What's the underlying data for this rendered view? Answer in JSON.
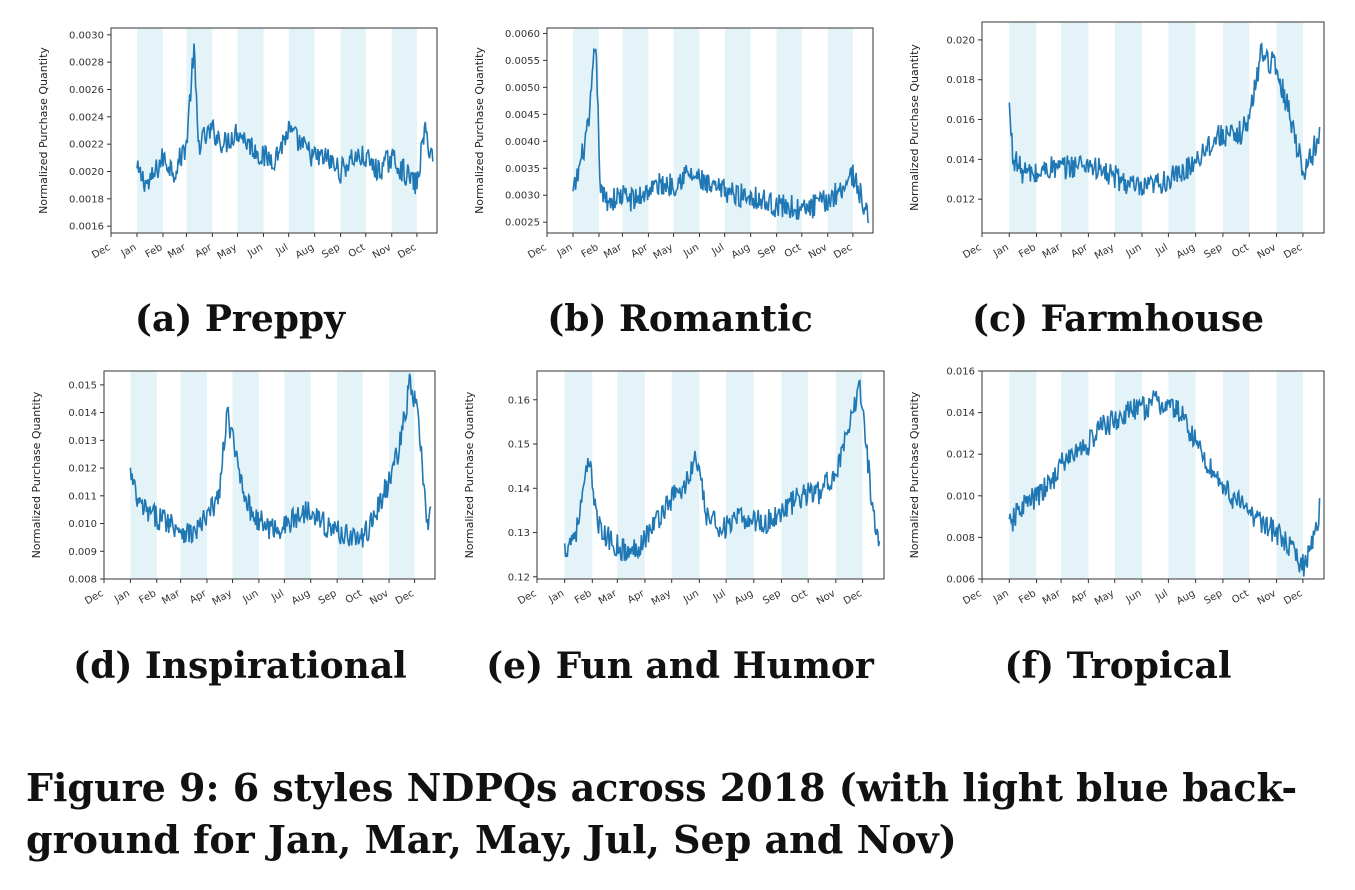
{
  "figure_caption": "Figure 9: 6 styles NDPQs across 2018 (with light blue back-ground for Jan, Mar, May, Jul, Sep and Nov)",
  "shade_color": "#e3f3f8",
  "line_color": "#1f77b4",
  "months": [
    "Dec",
    "Jan",
    "Feb",
    "Mar",
    "Apr",
    "May",
    "Jun",
    "Jul",
    "Aug",
    "Sep",
    "Oct",
    "Nov",
    "Dec"
  ],
  "shaded_months": [
    "Jan",
    "Mar",
    "May",
    "Jul",
    "Sep",
    "Nov"
  ],
  "chart_data": [
    {
      "type": "line",
      "caption": "(a) Preppy",
      "ylabel": "Normalized Purchase Quantity",
      "yticks": [
        "0.0016",
        "0.0018",
        "0.0020",
        "0.0022",
        "0.0024",
        "0.0026",
        "0.0028",
        "0.0030"
      ],
      "ylim": [
        0.00155,
        0.00305
      ],
      "x": [
        "2018-01-01",
        "2018-01-15",
        "2018-02-01",
        "2018-02-15",
        "2018-03-01",
        "2018-03-10",
        "2018-03-15",
        "2018-04-01",
        "2018-04-15",
        "2018-05-01",
        "2018-05-15",
        "2018-06-01",
        "2018-06-15",
        "2018-07-01",
        "2018-07-15",
        "2018-08-01",
        "2018-08-15",
        "2018-09-01",
        "2018-09-15",
        "2018-10-01",
        "2018-10-15",
        "2018-11-01",
        "2018-11-15",
        "2018-12-01",
        "2018-12-10",
        "2018-12-20"
      ],
      "y": [
        0.002,
        0.0019,
        0.0021,
        0.002,
        0.0022,
        0.0029,
        0.0022,
        0.0023,
        0.0022,
        0.0023,
        0.0022,
        0.0021,
        0.0021,
        0.0023,
        0.0022,
        0.0021,
        0.0021,
        0.002,
        0.0021,
        0.0021,
        0.002,
        0.0021,
        0.002,
        0.0019,
        0.0023,
        0.0021
      ]
    },
    {
      "type": "line",
      "caption": "(b) Romantic",
      "ylabel": "Normalized Purchase Quantity",
      "yticks": [
        "0.0025",
        "0.0030",
        "0.0035",
        "0.0040",
        "0.0045",
        "0.0050",
        "0.0055",
        "0.0060"
      ],
      "ylim": [
        0.0023,
        0.0061
      ],
      "x": [
        "2018-01-01",
        "2018-01-10",
        "2018-01-20",
        "2018-01-28",
        "2018-02-03",
        "2018-02-15",
        "2018-03-01",
        "2018-03-15",
        "2018-04-01",
        "2018-04-15",
        "2018-05-01",
        "2018-05-15",
        "2018-06-01",
        "2018-06-15",
        "2018-07-01",
        "2018-07-15",
        "2018-08-01",
        "2018-08-15",
        "2018-09-01",
        "2018-09-15",
        "2018-10-01",
        "2018-10-15",
        "2018-11-01",
        "2018-11-15",
        "2018-12-01",
        "2018-12-10",
        "2018-12-20"
      ],
      "y": [
        0.003,
        0.0036,
        0.0043,
        0.0059,
        0.003,
        0.0029,
        0.003,
        0.0029,
        0.0031,
        0.0032,
        0.0032,
        0.0034,
        0.0033,
        0.0031,
        0.0031,
        0.003,
        0.003,
        0.0029,
        0.0028,
        0.0028,
        0.0027,
        0.0028,
        0.0029,
        0.0031,
        0.0034,
        0.003,
        0.0025
      ]
    },
    {
      "type": "line",
      "caption": "(c) Farmhouse",
      "ylabel": "Normalized Purchase Quantity",
      "yticks": [
        "0.012",
        "0.014",
        "0.016",
        "0.018",
        "0.020"
      ],
      "ylim": [
        0.0103,
        0.0209
      ],
      "x": [
        "2018-01-01",
        "2018-01-05",
        "2018-01-15",
        "2018-02-01",
        "2018-02-15",
        "2018-03-01",
        "2018-03-15",
        "2018-04-01",
        "2018-04-15",
        "2018-05-01",
        "2018-05-15",
        "2018-06-01",
        "2018-06-15",
        "2018-07-01",
        "2018-07-15",
        "2018-08-01",
        "2018-08-15",
        "2018-09-01",
        "2018-09-15",
        "2018-10-01",
        "2018-10-15",
        "2018-11-01",
        "2018-11-15",
        "2018-12-01",
        "2018-12-10",
        "2018-12-20"
      ],
      "y": [
        0.0166,
        0.0142,
        0.0134,
        0.0132,
        0.0136,
        0.0135,
        0.0137,
        0.0138,
        0.0134,
        0.0131,
        0.0128,
        0.0124,
        0.0127,
        0.013,
        0.0132,
        0.014,
        0.0147,
        0.0153,
        0.015,
        0.016,
        0.0195,
        0.0185,
        0.0165,
        0.0135,
        0.014,
        0.0155
      ]
    },
    {
      "type": "line",
      "caption": "(d) Inspirational",
      "ylabel": "Normalized Purchase Quantity",
      "yticks": [
        "0.008",
        "0.009",
        "0.010",
        "0.011",
        "0.012",
        "0.013",
        "0.014",
        "0.015"
      ],
      "ylim": [
        0.008,
        0.0155
      ],
      "x": [
        "2018-01-01",
        "2018-01-10",
        "2018-01-25",
        "2018-02-15",
        "2018-03-01",
        "2018-03-15",
        "2018-04-01",
        "2018-04-15",
        "2018-04-25",
        "2018-05-05",
        "2018-05-20",
        "2018-06-01",
        "2018-06-15",
        "2018-07-01",
        "2018-07-15",
        "2018-08-01",
        "2018-08-15",
        "2018-09-01",
        "2018-09-15",
        "2018-10-01",
        "2018-10-15",
        "2018-11-01",
        "2018-11-15",
        "2018-11-25",
        "2018-12-05",
        "2018-12-15",
        "2018-12-20"
      ],
      "y": [
        0.0118,
        0.0107,
        0.0103,
        0.0101,
        0.0098,
        0.0096,
        0.0102,
        0.011,
        0.014,
        0.0124,
        0.0106,
        0.0101,
        0.0098,
        0.0099,
        0.0102,
        0.0106,
        0.01,
        0.0097,
        0.0096,
        0.0094,
        0.0103,
        0.0115,
        0.013,
        0.015,
        0.014,
        0.01,
        0.0104
      ]
    },
    {
      "type": "line",
      "caption": "(e) Fun and Humor",
      "ylabel": "Normalized Purchase Quantity",
      "yticks": [
        "0.12",
        "0.13",
        "0.14",
        "0.15",
        "0.16"
      ],
      "ylim": [
        0.1195,
        0.1665
      ],
      "x": [
        "2018-01-01",
        "2018-01-15",
        "2018-01-28",
        "2018-02-10",
        "2018-03-01",
        "2018-03-15",
        "2018-04-01",
        "2018-04-15",
        "2018-05-01",
        "2018-05-15",
        "2018-05-28",
        "2018-06-10",
        "2018-07-01",
        "2018-07-15",
        "2018-08-01",
        "2018-08-15",
        "2018-09-01",
        "2018-09-15",
        "2018-10-01",
        "2018-10-15",
        "2018-11-01",
        "2018-11-15",
        "2018-11-28",
        "2018-12-10",
        "2018-12-20"
      ],
      "y": [
        0.126,
        0.131,
        0.146,
        0.13,
        0.127,
        0.125,
        0.129,
        0.133,
        0.138,
        0.14,
        0.147,
        0.133,
        0.131,
        0.133,
        0.133,
        0.132,
        0.135,
        0.137,
        0.139,
        0.139,
        0.144,
        0.152,
        0.164,
        0.14,
        0.126
      ]
    },
    {
      "type": "line",
      "caption": "(f) Tropical",
      "ylabel": "Normalized Purchase Quantity",
      "yticks": [
        "0.006",
        "0.008",
        "0.010",
        "0.012",
        "0.014",
        "0.016"
      ],
      "ylim": [
        0.006,
        0.016
      ],
      "x": [
        "2018-01-01",
        "2018-01-15",
        "2018-02-01",
        "2018-02-15",
        "2018-03-01",
        "2018-03-15",
        "2018-04-01",
        "2018-04-15",
        "2018-05-01",
        "2018-05-15",
        "2018-06-01",
        "2018-06-15",
        "2018-07-01",
        "2018-07-15",
        "2018-08-01",
        "2018-08-15",
        "2018-09-01",
        "2018-09-15",
        "2018-10-01",
        "2018-10-15",
        "2018-11-01",
        "2018-11-15",
        "2018-12-01",
        "2018-12-10",
        "2018-12-20"
      ],
      "y": [
        0.0085,
        0.0095,
        0.0099,
        0.0105,
        0.0115,
        0.012,
        0.0125,
        0.0133,
        0.0136,
        0.014,
        0.0142,
        0.0145,
        0.0143,
        0.014,
        0.0126,
        0.0115,
        0.0105,
        0.0098,
        0.0092,
        0.0088,
        0.0082,
        0.0075,
        0.0066,
        0.0075,
        0.0093
      ]
    }
  ]
}
